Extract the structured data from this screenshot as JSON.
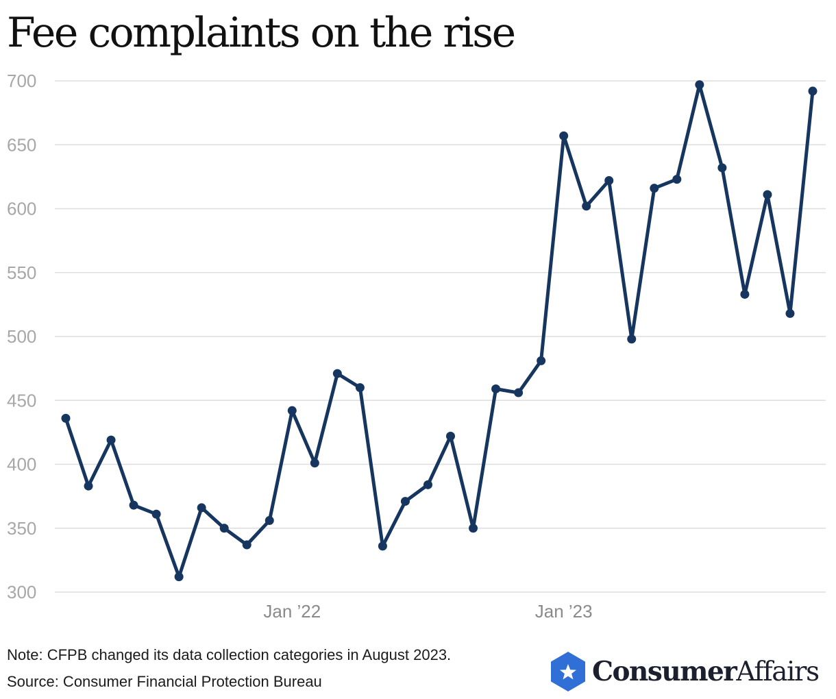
{
  "title": "Fee complaints on the rise",
  "note": "Note: CFPB changed its data collection categories in August 2023.",
  "source": "Source: Consumer Financial Protection Bureau",
  "logo": {
    "brand_bold": "Consumer",
    "brand_regular": "Affairs",
    "badge_color": "#2f6fd6",
    "badge_icon": "star-icon"
  },
  "colors": {
    "line": "#17365f",
    "grid": "#dedede"
  },
  "chart_data": {
    "type": "line",
    "title": "Fee complaints on the rise",
    "xlabel": "",
    "ylabel": "",
    "ylim": [
      300,
      700
    ],
    "yticks": [
      300,
      350,
      400,
      450,
      500,
      550,
      600,
      650,
      700
    ],
    "grid": true,
    "x_tick_labels": [
      {
        "label": "Jan ’22",
        "index": 10
      },
      {
        "label": "Jan ’23",
        "index": 22
      }
    ],
    "series": [
      {
        "name": "Fee complaints",
        "values": [
          436,
          383,
          419,
          368,
          361,
          312,
          366,
          350,
          337,
          356,
          442,
          401,
          471,
          460,
          336,
          371,
          384,
          422,
          350,
          459,
          456,
          481,
          657,
          602,
          622,
          498,
          616,
          623,
          697,
          632,
          533,
          611,
          518,
          692
        ]
      }
    ]
  }
}
